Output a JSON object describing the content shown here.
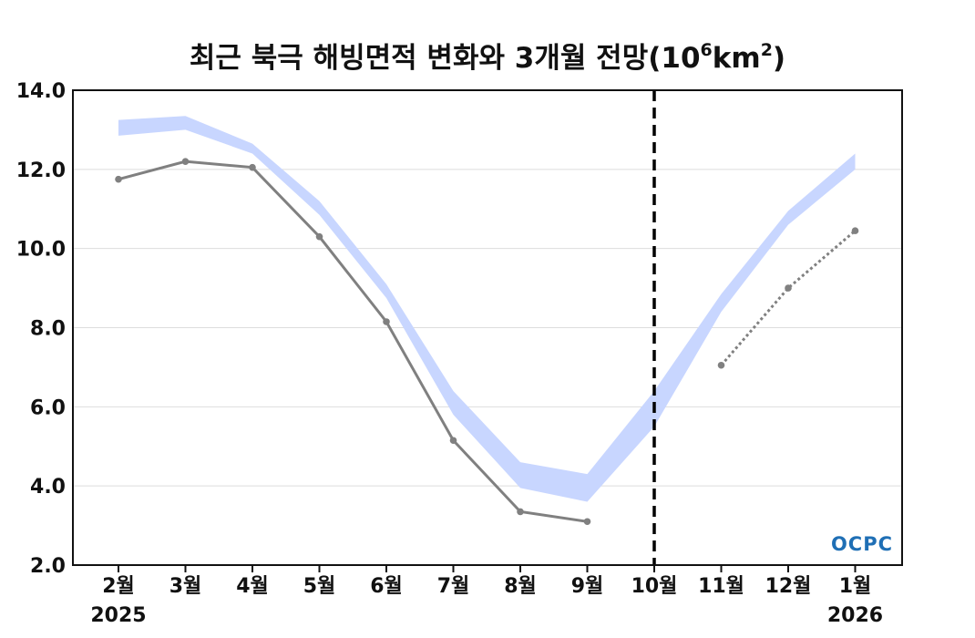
{
  "title": {
    "main": "최근 북극 해빙면적 변화와 3개월 전망(10",
    "sup1": "6",
    "mid": "km",
    "sup2": "2",
    "end": ")"
  },
  "logo_text": "OCPC",
  "colors": {
    "observed": "#808080",
    "band": "#c8d6ff",
    "forecast": "#808080",
    "divider": "#000000",
    "grid": "#dddddd",
    "logo": "#1f6fb5"
  },
  "chart_data": {
    "type": "line",
    "title": "최근 북극 해빙면적 변화와 3개월 전망(10^6km^2)",
    "xlabel": "",
    "ylabel": "",
    "categories": [
      "2월",
      "3월",
      "4월",
      "5월",
      "6월",
      "7월",
      "8월",
      "9월",
      "10월",
      "11월",
      "12월",
      "1월"
    ],
    "year_labels": [
      {
        "at": "2월",
        "text": "2025"
      },
      {
        "at": "1월",
        "text": "2026"
      }
    ],
    "ylim": [
      2.0,
      14.0
    ],
    "yticks": [
      "2.0",
      "4.0",
      "6.0",
      "8.0",
      "10.0",
      "12.0",
      "14.0"
    ],
    "grid": true,
    "divider_at": "10월",
    "series": [
      {
        "style": "solid-line-markers",
        "x": [
          "2월",
          "3월",
          "4월",
          "5월",
          "6월",
          "7월",
          "8월",
          "9월"
        ],
        "values": [
          11.75,
          12.2,
          12.05,
          10.3,
          8.15,
          5.15,
          3.35,
          3.1
        ]
      },
      {
        "style": "band",
        "x": [
          "2월",
          "3월",
          "4월",
          "5월",
          "6월",
          "7월",
          "8월",
          "9월",
          "10월",
          "11월",
          "12월",
          "1월"
        ],
        "lower": [
          12.85,
          13.0,
          12.4,
          10.85,
          8.75,
          5.8,
          3.95,
          3.6,
          5.5,
          8.4,
          10.6,
          12.0
        ],
        "upper": [
          13.25,
          13.35,
          12.65,
          11.2,
          9.1,
          6.4,
          4.6,
          4.3,
          6.4,
          8.85,
          10.95,
          12.4
        ]
      },
      {
        "style": "dotted-line-markers",
        "x": [
          "11월",
          "12월",
          "1월"
        ],
        "values": [
          7.05,
          9.0,
          10.45
        ]
      }
    ]
  }
}
